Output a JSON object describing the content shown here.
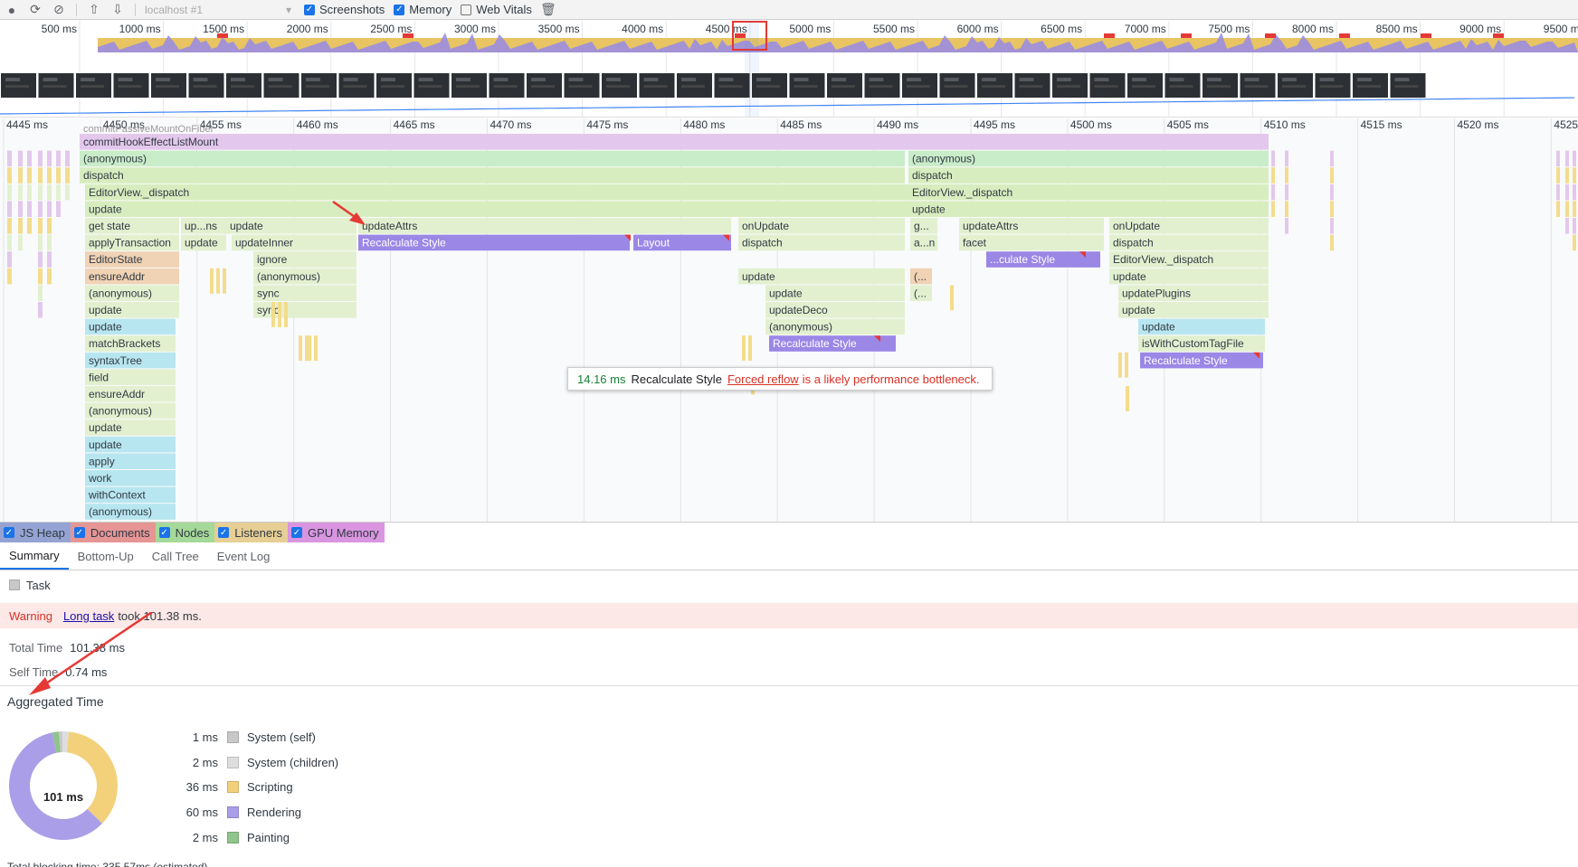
{
  "toolbar": {
    "url_select": "localhost #1",
    "checks": [
      {
        "label": "Screenshots",
        "checked": true
      },
      {
        "label": "Memory",
        "checked": true
      },
      {
        "label": "Web Vitals",
        "checked": false
      }
    ]
  },
  "overview": {
    "ticks": [
      "500 ms",
      "1000 ms",
      "1500 ms",
      "2000 ms",
      "2500 ms",
      "3000 ms",
      "3500 ms",
      "4000 ms",
      "4500 ms",
      "5000 ms",
      "5500 ms",
      "6000 ms",
      "6500 ms",
      "7000 ms",
      "7500 ms",
      "8000 ms",
      "8500 ms",
      "9000 ms",
      "9500 ms"
    ]
  },
  "flame": {
    "ticks": [
      "4445 ms",
      "4450 ms",
      "4455 ms",
      "4460 ms",
      "4465 ms",
      "4470 ms",
      "4475 ms",
      "4480 ms",
      "4485 ms",
      "4490 ms",
      "4495 ms",
      "4500 ms",
      "4505 ms",
      "4510 ms",
      "4515 ms",
      "4520 ms",
      "4525"
    ],
    "top_rows": [
      "commitPassiveMountOnFiber",
      "commitHookEffectListMount"
    ],
    "col_a": [
      "(anonymous)",
      "dispatch",
      "EditorView._dispatch",
      "update",
      "get state",
      "applyTransaction",
      "EditorState",
      "ensureAddr",
      "(anonymous)",
      "update",
      "update",
      "matchBrackets",
      "syntaxTree",
      "field",
      "ensureAddr",
      "(anonymous)",
      "update",
      "update",
      "apply",
      "work",
      "withContext",
      "(anonymous)"
    ],
    "col_b": [
      "up...ns",
      "update"
    ],
    "col_c": [
      "update",
      "updateInner",
      "ignore",
      "(anonymous)",
      "sync",
      "sync"
    ],
    "col_d": [
      "updateAttrs",
      "Recalculate Style",
      "Layout"
    ],
    "col_e": [
      "onUpdate",
      "dispatch",
      "update",
      "update",
      "updateDeco",
      "(anonymous)",
      "Recalculate Style"
    ],
    "col_f": [
      "(anonymous)",
      "dispatch",
      "EditorView._dispatch",
      "update",
      "g...",
      "a...n",
      "(...",
      "(..."
    ],
    "col_g": [
      "updateAttrs",
      "facet",
      "...culate Style"
    ],
    "col_h": [
      "onUpdate",
      "dispatch",
      "EditorView._dispatch",
      "update",
      "updatePlugins",
      "update",
      "update",
      "isWithCustomTagFile",
      "Recalculate Style"
    ]
  },
  "tooltip": {
    "time": "14.16 ms",
    "name": "Recalculate Style",
    "link": "Forced reflow",
    "rest": "is a likely performance bottleneck."
  },
  "counters": [
    {
      "label": "JS Heap",
      "color": "#7b8cc8"
    },
    {
      "label": "Documents",
      "color": "#e07a7a"
    },
    {
      "label": "Nodes",
      "color": "#8ed080"
    },
    {
      "label": "Listeners",
      "color": "#e0c27a"
    },
    {
      "label": "GPU Memory",
      "color": "#d07ad8"
    }
  ],
  "tabs": [
    "Summary",
    "Bottom-Up",
    "Call Tree",
    "Event Log"
  ],
  "summary": {
    "task_label": "Task",
    "warning_label": "Warning",
    "warning_link": "Long task",
    "warning_rest": "took 101.38 ms.",
    "total_label": "Total Time",
    "total_value": "101.38 ms",
    "self_label": "Self Time",
    "self_value": "0.74 ms",
    "agg_title": "Aggregated Time",
    "donut_center": "101 ms",
    "bottom_cut": "Total blocking time: 335.57ms (estimated)"
  },
  "chart_data": {
    "type": "pie",
    "title": "Aggregated Time",
    "categories": [
      "System (self)",
      "System (children)",
      "Scripting",
      "Rendering",
      "Painting"
    ],
    "labels": [
      "1 ms",
      "2 ms",
      "36 ms",
      "60 ms",
      "2 ms"
    ],
    "values": [
      1,
      2,
      36,
      60,
      2
    ],
    "colors": [
      "#c8c8c8",
      "#dedede",
      "#f2d17a",
      "#ab9ee8",
      "#8fc48a"
    ],
    "center_label": "101 ms"
  }
}
